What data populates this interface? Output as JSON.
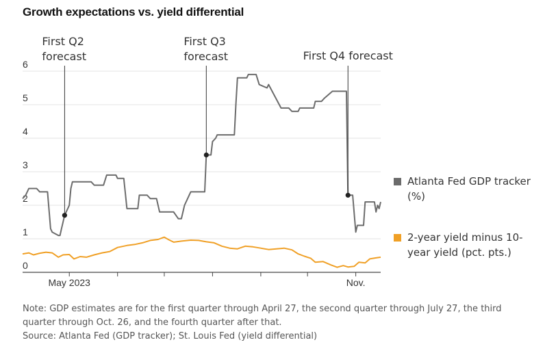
{
  "chart_data": {
    "type": "line",
    "title": "Growth expectations vs. yield differential",
    "ylim": [
      0,
      6
    ],
    "yticks": [
      "0",
      "1",
      "2",
      "3",
      "4",
      "5",
      "6"
    ],
    "x_start": "2023-04-01",
    "x_end": "2023-11-17",
    "x_month_ticks": [
      "2023-05-01",
      "2023-06-01",
      "2023-07-01",
      "2023-08-01",
      "2023-09-01",
      "2023-10-01",
      "2023-11-01"
    ],
    "x_labels": [
      {
        "date": "2023-05-01",
        "label": "May 2023"
      },
      {
        "date": "2023-11-01",
        "label": "Nov."
      }
    ],
    "annotations": [
      {
        "date": "2023-04-28",
        "value": 1.7,
        "lines": [
          "First Q2",
          "forecast"
        ]
      },
      {
        "date": "2023-07-28",
        "value": 3.5,
        "lines": [
          "First Q3",
          "forecast"
        ]
      },
      {
        "date": "2023-10-27",
        "value": 2.3,
        "lines": [
          "First Q4 forecast"
        ]
      }
    ],
    "series": [
      {
        "name": "Atlanta Fed GDP tracker (%)",
        "legend_lines": [
          "Atlanta Fed GDP tracker",
          "(%)"
        ],
        "color": "#6b6b6b",
        "points": [
          [
            "2023-04-01",
            2.2
          ],
          [
            "2023-04-03",
            2.3
          ],
          [
            "2023-04-05",
            2.5
          ],
          [
            "2023-04-10",
            2.5
          ],
          [
            "2023-04-12",
            2.4
          ],
          [
            "2023-04-17",
            2.4
          ],
          [
            "2023-04-19",
            1.3
          ],
          [
            "2023-04-20",
            1.2
          ],
          [
            "2023-04-24",
            1.1
          ],
          [
            "2023-04-25",
            1.1
          ],
          [
            "2023-04-26",
            1.3
          ],
          [
            "2023-04-28",
            1.7
          ],
          [
            "2023-05-01",
            2.0
          ],
          [
            "2023-05-02",
            2.5
          ],
          [
            "2023-05-03",
            2.7
          ],
          [
            "2023-05-15",
            2.7
          ],
          [
            "2023-05-17",
            2.6
          ],
          [
            "2023-05-23",
            2.6
          ],
          [
            "2023-05-25",
            2.9
          ],
          [
            "2023-05-31",
            2.9
          ],
          [
            "2023-06-01",
            2.8
          ],
          [
            "2023-06-05",
            2.8
          ],
          [
            "2023-06-07",
            1.9
          ],
          [
            "2023-06-14",
            1.9
          ],
          [
            "2023-06-15",
            2.3
          ],
          [
            "2023-06-20",
            2.3
          ],
          [
            "2023-06-22",
            2.2
          ],
          [
            "2023-06-26",
            2.2
          ],
          [
            "2023-06-28",
            1.8
          ],
          [
            "2023-07-07",
            1.8
          ],
          [
            "2023-07-10",
            1.6
          ],
          [
            "2023-07-12",
            1.6
          ],
          [
            "2023-07-14",
            2.0
          ],
          [
            "2023-07-17",
            2.3
          ],
          [
            "2023-07-18",
            2.4
          ],
          [
            "2023-07-27",
            2.4
          ],
          [
            "2023-07-28",
            3.5
          ],
          [
            "2023-07-31",
            3.5
          ],
          [
            "2023-08-01",
            3.9
          ],
          [
            "2023-08-03",
            4.0
          ],
          [
            "2023-08-04",
            4.1
          ],
          [
            "2023-08-15",
            4.1
          ],
          [
            "2023-08-16",
            5.0
          ],
          [
            "2023-08-17",
            5.8
          ],
          [
            "2023-08-23",
            5.8
          ],
          [
            "2023-08-24",
            5.9
          ],
          [
            "2023-08-29",
            5.9
          ],
          [
            "2023-08-31",
            5.6
          ],
          [
            "2023-09-05",
            5.5
          ],
          [
            "2023-09-06",
            5.6
          ],
          [
            "2023-09-14",
            4.9
          ],
          [
            "2023-09-19",
            4.9
          ],
          [
            "2023-09-21",
            4.8
          ],
          [
            "2023-09-25",
            4.8
          ],
          [
            "2023-09-26",
            4.9
          ],
          [
            "2023-10-05",
            4.9
          ],
          [
            "2023-10-06",
            5.1
          ],
          [
            "2023-10-10",
            5.1
          ],
          [
            "2023-10-12",
            5.2
          ],
          [
            "2023-10-17",
            5.4
          ],
          [
            "2023-10-26",
            5.4
          ],
          [
            "2023-10-27",
            2.3
          ],
          [
            "2023-10-30",
            2.3
          ],
          [
            "2023-11-01",
            1.2
          ],
          [
            "2023-11-02",
            1.4
          ],
          [
            "2023-11-06",
            1.4
          ],
          [
            "2023-11-07",
            2.1
          ],
          [
            "2023-11-13",
            2.1
          ],
          [
            "2023-11-14",
            1.8
          ],
          [
            "2023-11-15",
            2.0
          ],
          [
            "2023-11-16",
            1.9
          ],
          [
            "2023-11-17",
            2.1
          ]
        ]
      },
      {
        "name": "2-year yield minus 10-year yield (pct. pts.)",
        "legend_lines": [
          "2-year yield minus 10-",
          "year yield (pct. pts.)"
        ],
        "color": "#f0a026",
        "points": [
          [
            "2023-04-01",
            0.55
          ],
          [
            "2023-04-05",
            0.58
          ],
          [
            "2023-04-08",
            0.52
          ],
          [
            "2023-04-12",
            0.57
          ],
          [
            "2023-04-16",
            0.6
          ],
          [
            "2023-04-20",
            0.58
          ],
          [
            "2023-04-24",
            0.45
          ],
          [
            "2023-04-27",
            0.52
          ],
          [
            "2023-05-01",
            0.53
          ],
          [
            "2023-05-04",
            0.4
          ],
          [
            "2023-05-08",
            0.47
          ],
          [
            "2023-05-12",
            0.45
          ],
          [
            "2023-05-17",
            0.52
          ],
          [
            "2023-05-22",
            0.58
          ],
          [
            "2023-05-27",
            0.62
          ],
          [
            "2023-06-01",
            0.74
          ],
          [
            "2023-06-07",
            0.8
          ],
          [
            "2023-06-12",
            0.83
          ],
          [
            "2023-06-17",
            0.88
          ],
          [
            "2023-06-22",
            0.95
          ],
          [
            "2023-06-27",
            0.98
          ],
          [
            "2023-07-01",
            1.05
          ],
          [
            "2023-07-04",
            0.97
          ],
          [
            "2023-07-07",
            0.9
          ],
          [
            "2023-07-12",
            0.93
          ],
          [
            "2023-07-18",
            0.96
          ],
          [
            "2023-07-23",
            0.95
          ],
          [
            "2023-07-28",
            0.91
          ],
          [
            "2023-08-02",
            0.88
          ],
          [
            "2023-08-07",
            0.78
          ],
          [
            "2023-08-12",
            0.72
          ],
          [
            "2023-08-17",
            0.7
          ],
          [
            "2023-08-22",
            0.78
          ],
          [
            "2023-08-27",
            0.76
          ],
          [
            "2023-09-01",
            0.72
          ],
          [
            "2023-09-06",
            0.68
          ],
          [
            "2023-09-11",
            0.7
          ],
          [
            "2023-09-16",
            0.72
          ],
          [
            "2023-09-21",
            0.67
          ],
          [
            "2023-09-25",
            0.55
          ],
          [
            "2023-09-29",
            0.48
          ],
          [
            "2023-10-03",
            0.42
          ],
          [
            "2023-10-06",
            0.3
          ],
          [
            "2023-10-11",
            0.32
          ],
          [
            "2023-10-16",
            0.22
          ],
          [
            "2023-10-20",
            0.15
          ],
          [
            "2023-10-24",
            0.2
          ],
          [
            "2023-10-27",
            0.16
          ],
          [
            "2023-10-31",
            0.18
          ],
          [
            "2023-11-03",
            0.3
          ],
          [
            "2023-11-07",
            0.28
          ],
          [
            "2023-11-10",
            0.4
          ],
          [
            "2023-11-14",
            0.43
          ],
          [
            "2023-11-17",
            0.45
          ]
        ]
      }
    ]
  },
  "footnotes": {
    "note_line1": "Note: GDP estimates are for the first quarter through April 27, the second quarter through July 27, the third",
    "note_line2": "quarter through Oct. 26, and the fourth quarter after that.",
    "source": "Source: Atlanta Fed (GDP tracker); St. Louis Fed (yield differential)"
  }
}
